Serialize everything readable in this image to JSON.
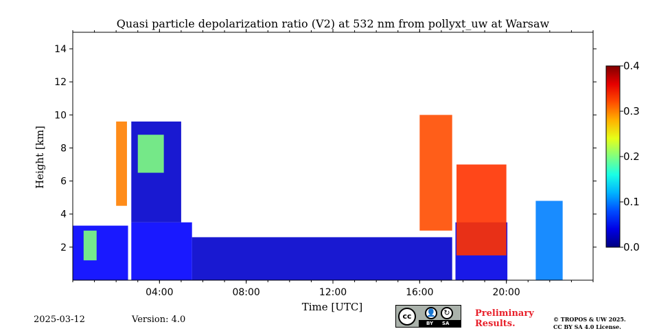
{
  "chart_data": {
    "type": "heatmap",
    "title": "Quasi particle depolarization ratio (V2) at 532 nm from pollyxt_uw at Warsaw",
    "xlabel": "Time [UTC]",
    "ylabel": "Height [km]",
    "x_range_hours": [
      0,
      24
    ],
    "y_range_km": [
      0,
      15
    ],
    "x_ticks": [
      "04:00",
      "08:00",
      "12:00",
      "16:00",
      "20:00"
    ],
    "x_tick_hours": [
      4,
      8,
      12,
      16,
      20
    ],
    "y_ticks": [
      "2",
      "4",
      "6",
      "8",
      "10",
      "12",
      "14"
    ],
    "y_tick_values": [
      2,
      4,
      6,
      8,
      10,
      12,
      14
    ],
    "colorbar": {
      "range": [
        0.0,
        0.4
      ],
      "ticks": [
        "0.0",
        "0.1",
        "0.2",
        "0.3",
        "0.4"
      ],
      "tick_values": [
        0.0,
        0.1,
        0.2,
        0.3,
        0.4
      ],
      "colormap": "jet"
    },
    "no_data_intervals_hours": [
      [
        2.55,
        2.68
      ],
      [
        17.55,
        17.65
      ],
      [
        20.05,
        21.35
      ],
      [
        22.6,
        24.0
      ]
    ],
    "features": [
      {
        "t": [
          0.0,
          2.6
        ],
        "z": [
          0.0,
          3.3
        ],
        "value": 0.05
      },
      {
        "t": [
          0.5,
          1.1
        ],
        "z": [
          1.2,
          3.0
        ],
        "value": 0.2
      },
      {
        "t": [
          2.0,
          2.5
        ],
        "z": [
          4.5,
          9.6
        ],
        "value": 0.3
      },
      {
        "t": [
          2.7,
          5.5
        ],
        "z": [
          0.0,
          3.5
        ],
        "value": 0.05
      },
      {
        "t": [
          2.7,
          5.0
        ],
        "z": [
          3.5,
          9.6
        ],
        "value": 0.03
      },
      {
        "t": [
          3.0,
          4.2
        ],
        "z": [
          6.5,
          8.8
        ],
        "value": 0.2
      },
      {
        "t": [
          5.5,
          17.5
        ],
        "z": [
          0.0,
          2.6
        ],
        "value": 0.03
      },
      {
        "t": [
          16.0,
          17.5
        ],
        "z": [
          3.0,
          10.0
        ],
        "value": 0.32
      },
      {
        "t": [
          17.65,
          20.05
        ],
        "z": [
          0.0,
          3.5
        ],
        "value": 0.04
      },
      {
        "t": [
          17.7,
          20.0
        ],
        "z": [
          1.5,
          7.0
        ],
        "value": 0.33
      },
      {
        "t": [
          21.35,
          22.6
        ],
        "z": [
          0.0,
          4.8
        ],
        "value": 0.1
      }
    ]
  },
  "footer": {
    "date": "2025-03-12",
    "version": "Version: 4.0",
    "preliminary_line1": "Preliminary",
    "preliminary_line2": "Results.",
    "copyright_line1": "© TROPOS & UW 2025.",
    "copyright_line2": "CC BY SA 4.0 License.",
    "badge_cc": "cc",
    "badge_by": "BY",
    "badge_sa": "SA",
    "accent_color": "#e8202a"
  }
}
